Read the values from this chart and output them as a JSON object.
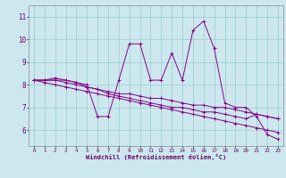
{
  "xlabel": "Windchill (Refroidissement éolien,°C)",
  "bg_color": "#cce8ee",
  "line_color": "#880088",
  "grid_color": "#99cccc",
  "x_ticks": [
    0,
    1,
    2,
    3,
    4,
    5,
    6,
    7,
    8,
    9,
    10,
    11,
    12,
    13,
    14,
    15,
    16,
    17,
    18,
    19,
    20,
    21,
    22,
    23
  ],
  "y_ticks": [
    6,
    7,
    8,
    9,
    10,
    11
  ],
  "ylim": [
    5.3,
    11.5
  ],
  "xlim": [
    -0.5,
    23.5
  ],
  "series1": [
    8.2,
    8.2,
    8.3,
    8.2,
    8.1,
    8.0,
    6.6,
    6.6,
    8.2,
    9.8,
    9.8,
    8.2,
    8.2,
    9.4,
    8.2,
    10.4,
    10.8,
    9.6,
    7.2,
    7.0,
    7.0,
    6.6,
    5.8,
    5.6
  ],
  "series2": [
    8.2,
    8.2,
    8.2,
    8.2,
    8.1,
    7.9,
    7.8,
    7.7,
    7.6,
    7.6,
    7.5,
    7.4,
    7.4,
    7.3,
    7.2,
    7.1,
    7.1,
    7.0,
    7.0,
    6.9,
    6.8,
    6.7,
    6.6,
    6.5
  ],
  "series3": [
    8.2,
    8.1,
    8.0,
    7.9,
    7.8,
    7.7,
    7.6,
    7.5,
    7.4,
    7.3,
    7.2,
    7.1,
    7.0,
    6.9,
    6.8,
    6.7,
    6.6,
    6.5,
    6.4,
    6.3,
    6.2,
    6.1,
    6.0,
    5.9
  ],
  "series4": [
    8.2,
    8.2,
    8.2,
    8.1,
    8.0,
    7.9,
    7.8,
    7.6,
    7.5,
    7.4,
    7.3,
    7.2,
    7.1,
    7.0,
    7.0,
    6.9,
    6.8,
    6.8,
    6.7,
    6.6,
    6.5,
    6.7,
    6.6,
    6.5
  ]
}
